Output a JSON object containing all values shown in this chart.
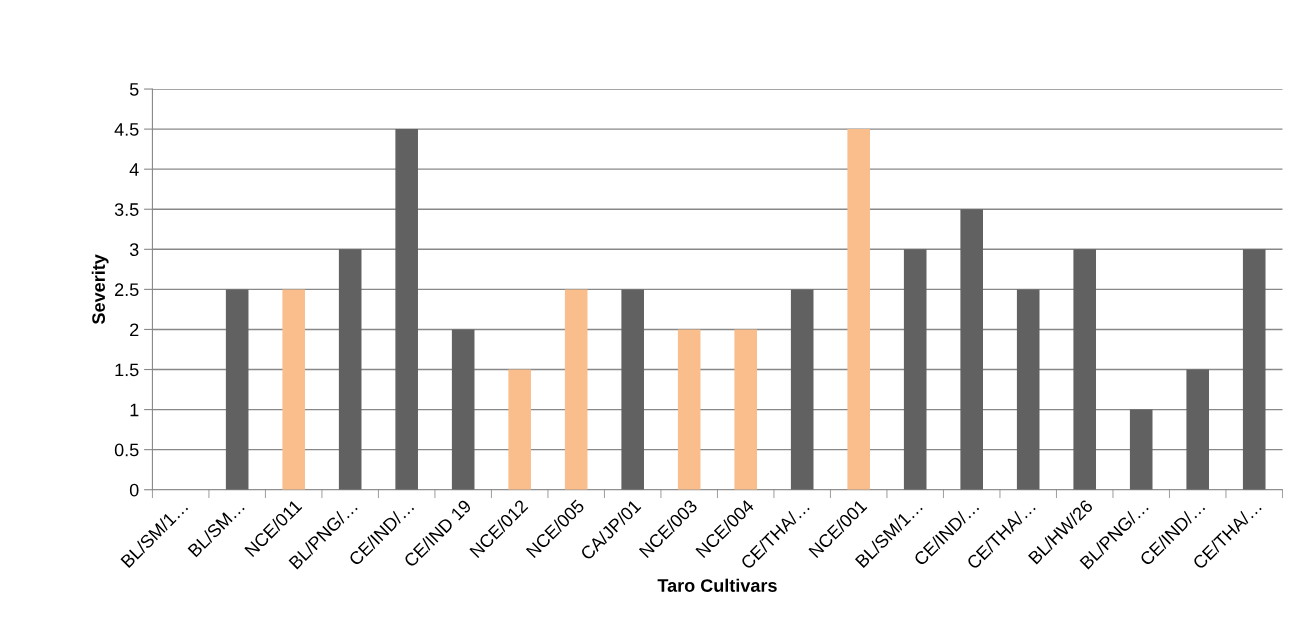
{
  "chart_data": {
    "type": "bar",
    "xlabel": "Taro Cultivars",
    "ylabel": "Severity",
    "categories": [
      "BL/SM/1…",
      "BL/SM…",
      "NCE/011",
      "BL/PNG/…",
      "CE/IND/…",
      "CE/IND 19",
      "NCE/012",
      "NCE/005",
      "CA/JP/01",
      "NCE/003",
      "NCE/004",
      "CE/THA/…",
      "NCE/001",
      "BL/SM/1…",
      "CE/IND/…",
      "CE/THA/…",
      "BL/HW/26",
      "BL/PNG/…",
      "CE/IND/…",
      "CE/THA/…"
    ],
    "values": [
      0,
      2.5,
      2.5,
      3,
      4.5,
      2,
      1.5,
      2.5,
      2.5,
      2,
      2,
      2.5,
      4.5,
      3,
      3.5,
      2.5,
      3,
      1,
      1.5,
      3
    ],
    "colors": [
      "#616161",
      "#616161",
      "#f9be8c",
      "#616161",
      "#616161",
      "#616161",
      "#f9be8c",
      "#f9be8c",
      "#616161",
      "#f9be8c",
      "#f9be8c",
      "#616161",
      "#f9be8c",
      "#616161",
      "#616161",
      "#616161",
      "#616161",
      "#616161",
      "#616161",
      "#616161"
    ],
    "ylim": [
      0,
      5
    ],
    "yticks": [
      0,
      0.5,
      1,
      1.5,
      2,
      2.5,
      3,
      3.5,
      4,
      4.5,
      5
    ],
    "grid": "y"
  }
}
